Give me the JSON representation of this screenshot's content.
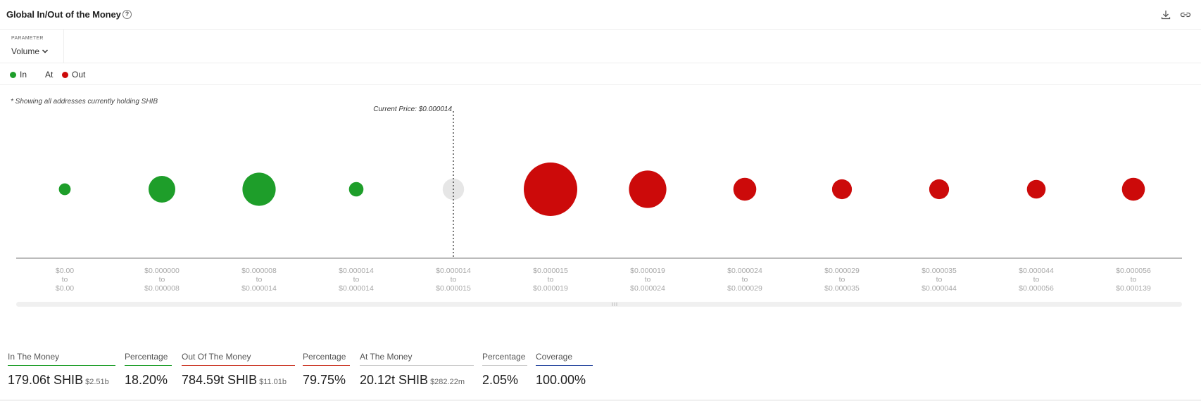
{
  "header": {
    "title": "Global In/Out of the Money",
    "help_icon": "question-circle-icon",
    "actions": [
      "download-icon",
      "link-icon"
    ]
  },
  "parameter": {
    "label": "PARAMETER",
    "value": "Volume"
  },
  "legend": [
    {
      "label": "In",
      "color": "#1e9e2a"
    },
    {
      "label": "At",
      "color": null
    },
    {
      "label": "Out",
      "color": "#cc0a0a"
    }
  ],
  "note": "* Showing all addresses currently holding SHIB",
  "chart_data": {
    "type": "scatter",
    "title": "",
    "annotation": "Current Price: $0.000014",
    "current_price_marker_between": [
      "$0.000014 to $0.000014",
      "$0.000014 to $0.000015"
    ],
    "categories": [
      {
        "from": "$0.00",
        "to": "$0.00",
        "status": "in",
        "relative_size": 0.22
      },
      {
        "from": "$0.000000",
        "to": "$0.000008",
        "status": "in",
        "relative_size": 0.5
      },
      {
        "from": "$0.000008",
        "to": "$0.000014",
        "status": "in",
        "relative_size": 0.62
      },
      {
        "from": "$0.000014",
        "to": "$0.000014",
        "status": "in",
        "relative_size": 0.27
      },
      {
        "from": "$0.000014",
        "to": "$0.000015",
        "status": "at",
        "relative_size": 0.4
      },
      {
        "from": "$0.000015",
        "to": "$0.000019",
        "status": "out",
        "relative_size": 1.0
      },
      {
        "from": "$0.000019",
        "to": "$0.000024",
        "status": "out",
        "relative_size": 0.7
      },
      {
        "from": "$0.000024",
        "to": "$0.000029",
        "status": "out",
        "relative_size": 0.43
      },
      {
        "from": "$0.000029",
        "to": "$0.000035",
        "status": "out",
        "relative_size": 0.37
      },
      {
        "from": "$0.000035",
        "to": "$0.000044",
        "status": "out",
        "relative_size": 0.37
      },
      {
        "from": "$0.000044",
        "to": "$0.000056",
        "status": "out",
        "relative_size": 0.35
      },
      {
        "from": "$0.000056",
        "to": "$0.000139",
        "status": "out",
        "relative_size": 0.43
      }
    ],
    "range_connector": "to",
    "colors": {
      "in": "#1e9e2a",
      "at": "#e6e6e6",
      "out": "#cc0a0a"
    }
  },
  "stats": [
    {
      "label": "In The Money",
      "value": "179.06t SHIB",
      "sub": "$2.51b",
      "underline": "#1e9e2a"
    },
    {
      "label": "Percentage",
      "value": "18.20%",
      "sub": "",
      "underline": "#1e9e2a"
    },
    {
      "label": "Out Of The Money",
      "value": "784.59t SHIB",
      "sub": "$11.01b",
      "underline": "#cc3a2a"
    },
    {
      "label": "Percentage",
      "value": "79.75%",
      "sub": "",
      "underline": "#cc3a2a"
    },
    {
      "label": "At The Money",
      "value": "20.12t SHIB",
      "sub": "$282.22m",
      "underline": "#cccccc"
    },
    {
      "label": "Percentage",
      "value": "2.05%",
      "sub": "",
      "underline": "#cccccc"
    },
    {
      "label": "Coverage",
      "value": "100.00%",
      "sub": "",
      "underline": "#2b4aa0"
    }
  ]
}
